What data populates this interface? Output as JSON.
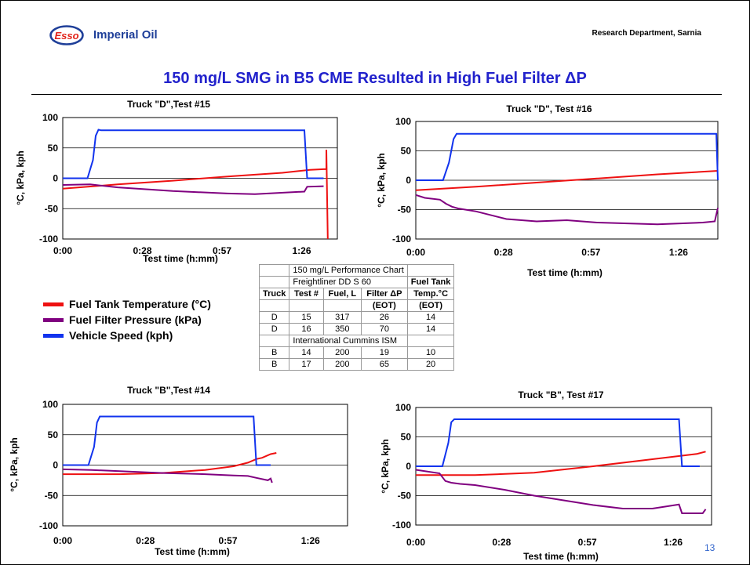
{
  "header": {
    "logo_text": "Esso",
    "brand": "Imperial Oil",
    "department": "Research Department, Sarnia"
  },
  "slide": {
    "title": "150 mg/L SMG in B5 CME Resulted in High Fuel Filter ΔP",
    "page_number": "13"
  },
  "colors": {
    "fuel_tank_temperature": "#ee1111",
    "fuel_filter_pressure": "#800080",
    "vehicle_speed": "#1133ee",
    "title": "#2222cc"
  },
  "legend": {
    "items": [
      {
        "label": "Fuel Tank Temperature (°C)",
        "color": "#ee1111"
      },
      {
        "label": "Fuel Filter Pressure (kPa)",
        "color": "#800080"
      },
      {
        "label": "Vehicle Speed (kph)",
        "color": "#1133ee"
      }
    ]
  },
  "table": {
    "title": "150 mg/L Performance Chart",
    "group1": "Freightliner DD S 60",
    "group2": "International Cummins ISM",
    "headers": [
      "Truck",
      "Test #",
      "Fuel, L",
      "Filter ΔP",
      "Fuel Tank",
      "Temp.°C"
    ],
    "eot": [
      "(EOT)",
      "(EOT)"
    ],
    "rows1": [
      [
        "D",
        "15",
        "317",
        "26",
        "14"
      ],
      [
        "D",
        "16",
        "350",
        "70",
        "14"
      ]
    ],
    "rows2": [
      [
        "B",
        "14",
        "200",
        "19",
        "10"
      ],
      [
        "B",
        "17",
        "200",
        "65",
        "20"
      ]
    ]
  },
  "chart_data": [
    {
      "type": "line",
      "title": "Truck \"D\",Test #15",
      "xlabel": "Test time (h:mm)",
      "ylabel": "°C, kPa, kph",
      "xticks": [
        "0:00",
        "0:28",
        "0:57",
        "1:26"
      ],
      "xlim": [
        0,
        100
      ],
      "ylim": [
        -100,
        100
      ],
      "yticks": [
        100,
        50,
        0,
        -50,
        -100
      ],
      "grid": true,
      "series": [
        {
          "key": "fuel_tank_temperature",
          "x": [
            0,
            20,
            40,
            60,
            80,
            90,
            95,
            96,
            96,
            96.5
          ],
          "y": [
            -17,
            -10,
            -4,
            3,
            9,
            14,
            15,
            15,
            47,
            -100
          ]
        },
        {
          "key": "fuel_filter_pressure",
          "x": [
            0,
            10,
            20,
            40,
            60,
            70,
            88,
            89,
            95
          ],
          "y": [
            -11,
            -10,
            -15,
            -21,
            -25,
            -26,
            -22,
            -14,
            -13
          ]
        },
        {
          "key": "vehicle_speed",
          "x": [
            0,
            9,
            11,
            12,
            13,
            14,
            88,
            89,
            95
          ],
          "y": [
            0,
            0,
            30,
            70,
            80,
            79,
            79,
            0,
            0
          ]
        }
      ]
    },
    {
      "type": "line",
      "title": "Truck \"D\", Test #16",
      "xlabel": "Test time (h:mm)",
      "ylabel": "°C, kPa, kph",
      "xticks": [
        "0:00",
        "0:28",
        "0:57",
        "1:26"
      ],
      "xlim": [
        0,
        100
      ],
      "ylim": [
        -100,
        100
      ],
      "yticks": [
        100,
        50,
        0,
        -50,
        -100
      ],
      "grid": true,
      "series": [
        {
          "key": "fuel_tank_temperature",
          "x": [
            0,
            20,
            40,
            60,
            80,
            100
          ],
          "y": [
            -17,
            -11,
            -4,
            3,
            10,
            16
          ]
        },
        {
          "key": "fuel_filter_pressure",
          "x": [
            0,
            3,
            8,
            10,
            12,
            14,
            20,
            30,
            40,
            50,
            60,
            80,
            95,
            99,
            100
          ],
          "y": [
            -25,
            -30,
            -33,
            -40,
            -45,
            -48,
            -53,
            -66,
            -70,
            -68,
            -72,
            -75,
            -72,
            -70,
            -47
          ]
        },
        {
          "key": "vehicle_speed",
          "x": [
            0,
            9,
            11,
            12.5,
            13.5,
            99.5,
            100
          ],
          "y": [
            0,
            0,
            30,
            70,
            79,
            79,
            0
          ]
        }
      ]
    },
    {
      "type": "line",
      "title": "Truck \"B\",Test #14",
      "xlabel": "Test time (h:mm)",
      "ylabel": "°C, kPa, kph",
      "xticks": [
        "0:00",
        "0:28",
        "0:57",
        "1:26"
      ],
      "xlim": [
        0,
        100
      ],
      "ylim": [
        -100,
        100
      ],
      "yticks": [
        100,
        50,
        0,
        -50,
        -100
      ],
      "grid": true,
      "series": [
        {
          "key": "fuel_tank_temperature",
          "x": [
            0,
            20,
            35,
            50,
            60,
            65,
            68,
            70,
            73,
            75
          ],
          "y": [
            -15,
            -15,
            -13,
            -8,
            -2,
            4,
            10,
            12,
            18,
            20
          ]
        },
        {
          "key": "fuel_filter_pressure",
          "x": [
            0,
            10,
            20,
            35,
            50,
            60,
            65,
            68,
            72,
            73,
            73.5
          ],
          "y": [
            -7,
            -8,
            -10,
            -13,
            -15,
            -17,
            -18,
            -21,
            -25,
            -22,
            -29
          ]
        },
        {
          "key": "vehicle_speed",
          "x": [
            0,
            9,
            11,
            12,
            13,
            67,
            68,
            73
          ],
          "y": [
            0,
            0,
            30,
            70,
            80,
            80,
            0,
            0
          ]
        }
      ]
    },
    {
      "type": "line",
      "title": "Truck \"B\", Test #17",
      "xlabel": "Test time (h:mm)",
      "ylabel": "°C, kPa, kph",
      "xticks": [
        "0:00",
        "0:28",
        "0:57",
        "1:26"
      ],
      "xlim": [
        0,
        100
      ],
      "ylim": [
        -100,
        100
      ],
      "yticks": [
        100,
        50,
        0,
        -50,
        -100
      ],
      "grid": true,
      "series": [
        {
          "key": "fuel_tank_temperature",
          "x": [
            0,
            20,
            40,
            60,
            80,
            90,
            95,
            98
          ],
          "y": [
            -15,
            -15,
            -11,
            0,
            12,
            18,
            21,
            25
          ]
        },
        {
          "key": "fuel_filter_pressure",
          "x": [
            0,
            8,
            10,
            12,
            15,
            20,
            30,
            40,
            50,
            60,
            70,
            80,
            89,
            90,
            97,
            98
          ],
          "y": [
            -6,
            -12,
            -25,
            -28,
            -30,
            -32,
            -40,
            -50,
            -58,
            -66,
            -72,
            -72,
            -65,
            -80,
            -80,
            -73
          ]
        },
        {
          "key": "vehicle_speed",
          "x": [
            0,
            9,
            11,
            12,
            13,
            89,
            90,
            96
          ],
          "y": [
            0,
            0,
            40,
            75,
            80,
            80,
            0,
            0
          ]
        }
      ]
    }
  ]
}
